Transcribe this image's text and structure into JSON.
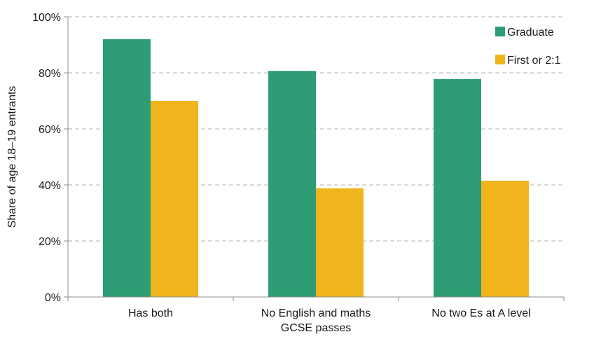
{
  "chart_data": {
    "type": "bar",
    "title": "",
    "xlabel": "",
    "ylabel": "Share of age 18–19 entrants",
    "ylim": [
      0,
      100
    ],
    "y_ticks": [
      "0%",
      "20%",
      "40%",
      "60%",
      "80%",
      "100%"
    ],
    "y_tick_values": [
      0,
      20,
      40,
      60,
      80,
      100
    ],
    "grid": "horizontal dashed",
    "legend_position": "top-right",
    "categories": [
      [
        "Has both"
      ],
      [
        "No English and maths",
        "GCSE passes"
      ],
      [
        "No two Es at A level"
      ]
    ],
    "series": [
      {
        "name": "Graduate",
        "color": "#2e9c74",
        "values": [
          92,
          80.7,
          77.8
        ]
      },
      {
        "name": "First or 2:1",
        "color": "#f0b51c",
        "values": [
          70,
          38.8,
          41.5
        ]
      }
    ]
  }
}
